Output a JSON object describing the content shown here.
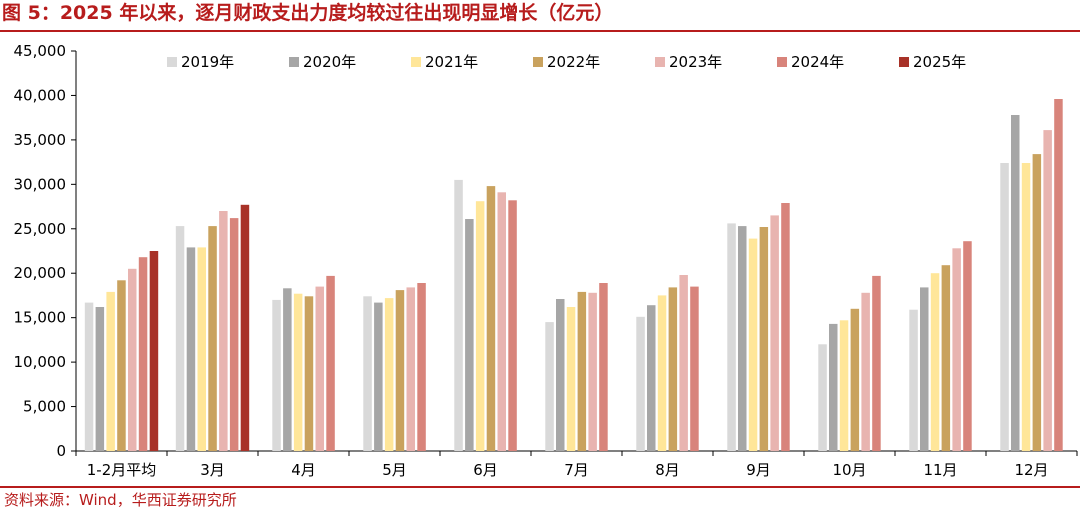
{
  "title": "图 5：2025 年以来，逐月财政支出力度均较过往出现明显增长（亿元）",
  "source": "资料来源：Wind，华西证券研究所",
  "colors": {
    "accent": "#b71c1c",
    "series": [
      "#d9d9d9",
      "#a6a6a6",
      "#ffe699",
      "#c9a25e",
      "#e8b4b0",
      "#d8847b",
      "#a83228"
    ]
  },
  "chart_data": {
    "type": "bar",
    "title": "",
    "xlabel": "",
    "ylabel": "",
    "ylim": [
      0,
      45000
    ],
    "yticks": [
      0,
      5000,
      10000,
      15000,
      20000,
      25000,
      30000,
      35000,
      40000,
      45000
    ],
    "ytick_labels": [
      "0",
      "5,000",
      "10,000",
      "15,000",
      "20,000",
      "25,000",
      "30,000",
      "35,000",
      "40,000",
      "45,000"
    ],
    "legend_position": "top",
    "grid": false,
    "categories": [
      "1-2月平均",
      "3月",
      "4月",
      "5月",
      "6月",
      "7月",
      "8月",
      "9月",
      "10月",
      "11月",
      "12月"
    ],
    "series": [
      {
        "name": "2019年",
        "values": [
          16700,
          25300,
          17000,
          17400,
          30500,
          14500,
          15100,
          25600,
          12000,
          15900,
          32400
        ]
      },
      {
        "name": "2020年",
        "values": [
          16200,
          22900,
          18300,
          16700,
          26100,
          17100,
          16400,
          25300,
          14300,
          18400,
          37800
        ]
      },
      {
        "name": "2021年",
        "values": [
          17900,
          22900,
          17700,
          17200,
          28100,
          16200,
          17500,
          23900,
          14700,
          20000,
          32400
        ]
      },
      {
        "name": "2022年",
        "values": [
          19200,
          25300,
          17400,
          18100,
          29800,
          17900,
          18400,
          25200,
          16000,
          20900,
          33400
        ]
      },
      {
        "name": "2023年",
        "values": [
          20500,
          27000,
          18500,
          18400,
          29100,
          17800,
          19800,
          26500,
          17800,
          22800,
          36100
        ]
      },
      {
        "name": "2024年",
        "values": [
          21800,
          26200,
          19700,
          18900,
          28200,
          18900,
          18500,
          27900,
          19700,
          23600,
          39600
        ]
      },
      {
        "name": "2025年",
        "values": [
          22500,
          27700,
          null,
          null,
          null,
          null,
          null,
          null,
          null,
          null,
          null
        ]
      }
    ]
  }
}
